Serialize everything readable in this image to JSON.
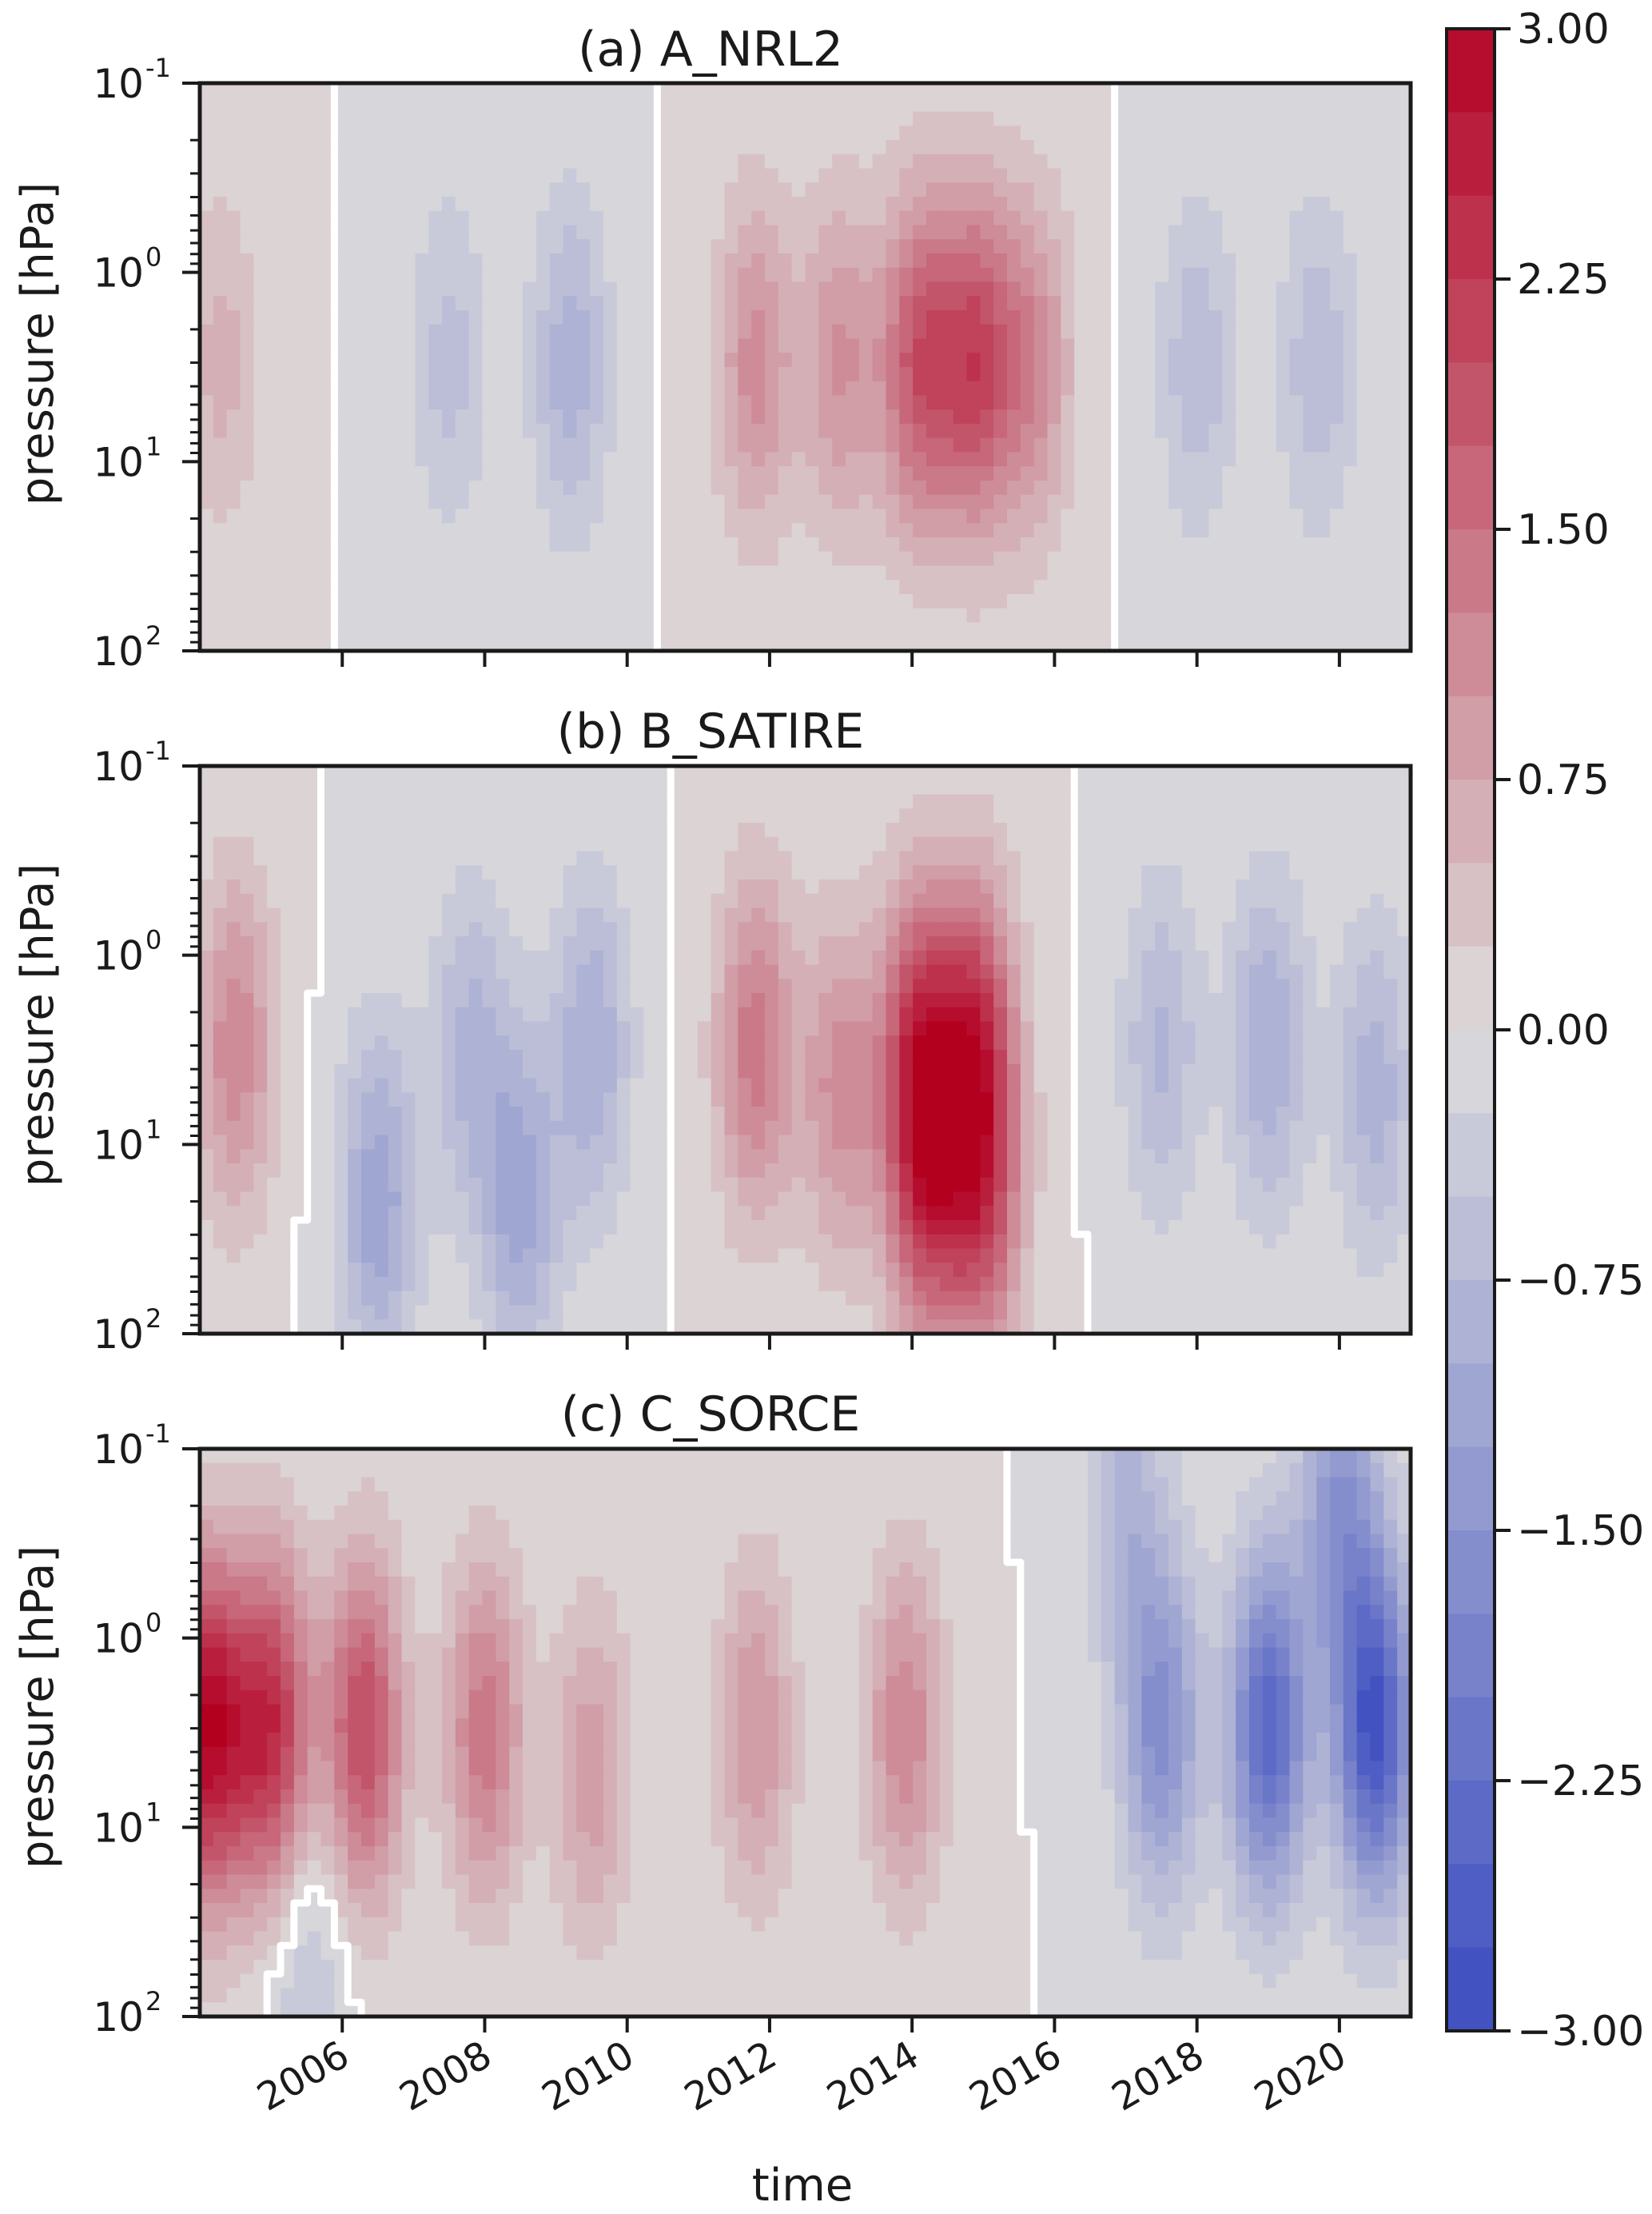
{
  "chart_data": [
    {
      "type": "heatmap",
      "title": "(a) A_NRL2",
      "xlabel": "",
      "ylabel": "pressure [hPa]",
      "ylim": [
        100,
        0.1
      ],
      "yscale": "log",
      "yticks": [
        "10",
        "10",
        "10",
        "10"
      ],
      "ytick_exponents": [
        "-1",
        "0",
        "1",
        "2"
      ],
      "xlim": [
        2004.0,
        2021.0
      ],
      "zero_contour_color": "#ffffff",
      "features": [
        {
          "t": 2004.3,
          "p": 3,
          "v": 0.6
        },
        {
          "t": 2007.5,
          "p": 3,
          "v": -0.6
        },
        {
          "t": 2009.2,
          "p": 3,
          "v": -0.9
        },
        {
          "t": 2011.8,
          "p": 3,
          "v": 1.1
        },
        {
          "t": 2013.0,
          "p": 3,
          "v": 1.0
        },
        {
          "t": 2014.1,
          "p": 3,
          "v": 1.8
        },
        {
          "t": 2014.9,
          "p": 3,
          "v": 1.9
        },
        {
          "t": 2015.7,
          "p": 3,
          "v": 1.1
        },
        {
          "t": 2018.0,
          "p": 3,
          "v": -0.7
        },
        {
          "t": 2019.7,
          "p": 3,
          "v": -0.7
        }
      ]
    },
    {
      "type": "heatmap",
      "title": "(b) B_SATIRE",
      "xlabel": "",
      "ylabel": "pressure [hPa]",
      "ylim": [
        100,
        0.1
      ],
      "yscale": "log",
      "yticks": [
        "10",
        "10",
        "10",
        "10"
      ],
      "ytick_exponents": [
        "-1",
        "0",
        "1",
        "2"
      ],
      "xlim": [
        2004.0,
        2021.0
      ],
      "zero_contour_color": "#ffffff",
      "features": [
        {
          "t": 2004.5,
          "p": 3,
          "v": 1.2
        },
        {
          "t": 2006.5,
          "p": 20,
          "v": -1.2
        },
        {
          "t": 2007.8,
          "p": 3,
          "v": -0.8
        },
        {
          "t": 2008.5,
          "p": 20,
          "v": -1.1
        },
        {
          "t": 2009.5,
          "p": 3,
          "v": -1.0
        },
        {
          "t": 2011.8,
          "p": 3,
          "v": 1.4
        },
        {
          "t": 2013.0,
          "p": 5,
          "v": 1.1
        },
        {
          "t": 2014.1,
          "p": 3,
          "v": 1.8
        },
        {
          "t": 2014.9,
          "p": 3,
          "v": 2.0
        },
        {
          "t": 2014.2,
          "p": 15,
          "v": 1.8
        },
        {
          "t": 2015.0,
          "p": 20,
          "v": 1.6
        },
        {
          "t": 2017.5,
          "p": 3,
          "v": -0.8
        },
        {
          "t": 2019.0,
          "p": 3,
          "v": -1.0
        },
        {
          "t": 2020.5,
          "p": 5,
          "v": -0.9
        }
      ]
    },
    {
      "type": "heatmap",
      "title": "(c) C_SORCE",
      "xlabel": "time",
      "ylabel": "pressure [hPa]",
      "ylim": [
        100,
        0.1
      ],
      "yscale": "log",
      "yticks": [
        "10",
        "10",
        "10",
        "10"
      ],
      "ytick_exponents": [
        "-1",
        "0",
        "1",
        "2"
      ],
      "xlim": [
        2004.0,
        2021.0
      ],
      "xticks": [
        "2006",
        "2008",
        "2010",
        "2012",
        "2014",
        "2016",
        "2018",
        "2020"
      ],
      "zero_contour_color": "#ffffff",
      "features": [
        {
          "t": 2004.1,
          "p": 3,
          "v": 2.9
        },
        {
          "t": 2005.0,
          "p": 3,
          "v": 2.4
        },
        {
          "t": 2006.3,
          "p": 3,
          "v": 2.0
        },
        {
          "t": 2008.0,
          "p": 3,
          "v": 1.4
        },
        {
          "t": 2009.5,
          "p": 5,
          "v": 0.9
        },
        {
          "t": 2011.8,
          "p": 3,
          "v": 1.0
        },
        {
          "t": 2013.9,
          "p": 3,
          "v": 1.2
        },
        {
          "t": 2005.5,
          "p": 60,
          "v": -0.6
        },
        {
          "t": 2017.5,
          "p": 3,
          "v": -1.6
        },
        {
          "t": 2019.0,
          "p": 3,
          "v": -2.4
        },
        {
          "t": 2020.5,
          "p": 3,
          "v": -2.8
        },
        {
          "t": 2017.0,
          "p": 0.2,
          "v": -0.8
        },
        {
          "t": 2020.0,
          "p": 0.2,
          "v": -1.4
        }
      ]
    }
  ],
  "colorbar": {
    "min": -3.0,
    "max": 3.0,
    "levels": 24,
    "tick_labels": [
      "3.00",
      "2.25",
      "1.50",
      "0.75",
      "0.00",
      "−0.75",
      "−1.50",
      "−2.25",
      "−3.00"
    ],
    "colormap": "coolwarm",
    "low_color": "#3b4cc0",
    "mid_color": "#dddcdc",
    "high_color": "#b40426"
  }
}
